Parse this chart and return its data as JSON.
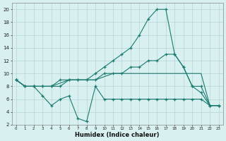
{
  "xlabel": "Humidex (Indice chaleur)",
  "x": [
    0,
    1,
    2,
    3,
    4,
    5,
    6,
    7,
    8,
    9,
    10,
    11,
    12,
    13,
    14,
    15,
    16,
    17,
    18,
    19,
    20,
    21,
    22,
    23
  ],
  "line1": [
    9,
    8,
    8,
    8,
    8,
    8,
    9,
    9,
    9,
    10,
    11,
    12,
    13,
    14,
    16,
    18.5,
    20,
    20,
    13,
    11,
    8,
    7,
    5,
    5
  ],
  "line2": [
    9,
    8,
    8,
    8,
    8,
    9,
    9,
    9,
    9,
    9,
    10,
    10,
    10,
    11,
    11,
    12,
    12,
    13,
    13,
    11,
    8,
    8,
    5,
    5
  ],
  "line3": [
    9,
    8,
    8,
    6.5,
    5,
    6,
    6.5,
    3,
    2.5,
    8,
    6,
    6,
    6,
    6,
    6,
    6,
    6,
    6,
    6,
    6,
    6,
    6,
    5,
    5
  ],
  "line4": [
    9,
    8,
    8,
    8,
    8,
    8.5,
    9,
    9,
    9,
    9,
    9.5,
    10,
    10,
    10,
    10,
    10,
    10,
    10,
    10,
    10,
    10,
    10,
    5,
    5
  ],
  "color": "#1a7a6e",
  "bg_color": "#d8f0f0",
  "grid_color": "#b8d4d4",
  "ylim": [
    2,
    21
  ],
  "xlim": [
    -0.5,
    23.5
  ],
  "yticks": [
    2,
    4,
    6,
    8,
    10,
    12,
    14,
    16,
    18,
    20
  ],
  "xticks": [
    0,
    1,
    2,
    3,
    4,
    5,
    6,
    7,
    8,
    9,
    10,
    11,
    12,
    13,
    14,
    15,
    16,
    17,
    18,
    19,
    20,
    21,
    22,
    23
  ]
}
